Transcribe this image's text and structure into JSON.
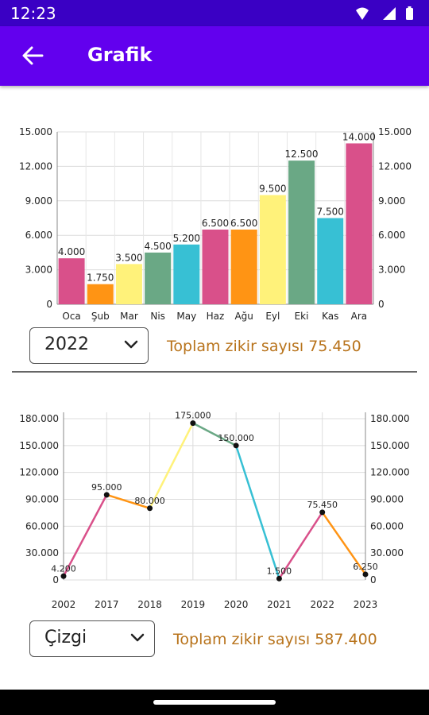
{
  "status_bar": {
    "time": "12:23",
    "icons": [
      "wifi-icon",
      "signal-icon",
      "battery-icon"
    ]
  },
  "app_bar": {
    "title": "Grafik",
    "back_icon": "arrow-left-icon"
  },
  "bar_section": {
    "year_dropdown": {
      "value": "2022",
      "icon": "chevron-down-icon"
    },
    "total_text": "Toplam zikir sayısı 75.450"
  },
  "line_section": {
    "type_dropdown": {
      "value": "Çizgi",
      "icon": "chevron-down-icon"
    },
    "total_text": "Toplam zikir sayısı 587.400"
  },
  "chart_data": [
    {
      "type": "bar",
      "categories": [
        "Oca",
        "Şub",
        "Mar",
        "Nis",
        "May",
        "Haz",
        "Ağu",
        "Eyl",
        "Eki",
        "Kas",
        "Ara"
      ],
      "values": [
        4000,
        1750,
        3500,
        4500,
        5200,
        6500,
        6500,
        9500,
        12500,
        7500,
        14000
      ],
      "value_labels": [
        "4.000",
        "1.750",
        "3.500",
        "4.500",
        "5.200",
        "6.500",
        "6.500",
        "9.500",
        "12.500",
        "7.500",
        "14.000"
      ],
      "colors": [
        "#d9508a",
        "#ff9414",
        "#fff27a",
        "#6aa885",
        "#37c0d4",
        "#d9508a",
        "#ff9414",
        "#fff27a",
        "#6aa885",
        "#37c0d4",
        "#d9508a"
      ],
      "ylim": [
        0,
        15000
      ],
      "yticks": [
        0,
        3000,
        6000,
        9000,
        12000,
        15000
      ],
      "ytick_labels": [
        "0",
        "3.000",
        "6.000",
        "9.000",
        "12.000",
        "15.000"
      ],
      "grid": true,
      "title": "",
      "xlabel": "",
      "ylabel": ""
    },
    {
      "type": "line",
      "categories": [
        "2002",
        "2017",
        "2018",
        "2019",
        "2020",
        "2021",
        "2022",
        "2023"
      ],
      "values": [
        4200,
        95000,
        80000,
        175000,
        150000,
        1500,
        75450,
        6250
      ],
      "value_labels": [
        "4.200",
        "95.000",
        "80.000",
        "175.000",
        "150.000",
        "1.500",
        "75.450",
        "6.250"
      ],
      "segment_colors": [
        "#d9508a",
        "#ff9414",
        "#fff27a",
        "#6aa885",
        "#37c0d4",
        "#d9508a",
        "#ff9414"
      ],
      "ylim": [
        0,
        180000
      ],
      "yticks": [
        0,
        30000,
        60000,
        90000,
        120000,
        150000,
        180000
      ],
      "ytick_labels": [
        "0",
        "30.000",
        "60.000",
        "90.000",
        "120.000",
        "150.000",
        "180.000"
      ],
      "grid": true,
      "title": "",
      "xlabel": "",
      "ylabel": ""
    }
  ]
}
